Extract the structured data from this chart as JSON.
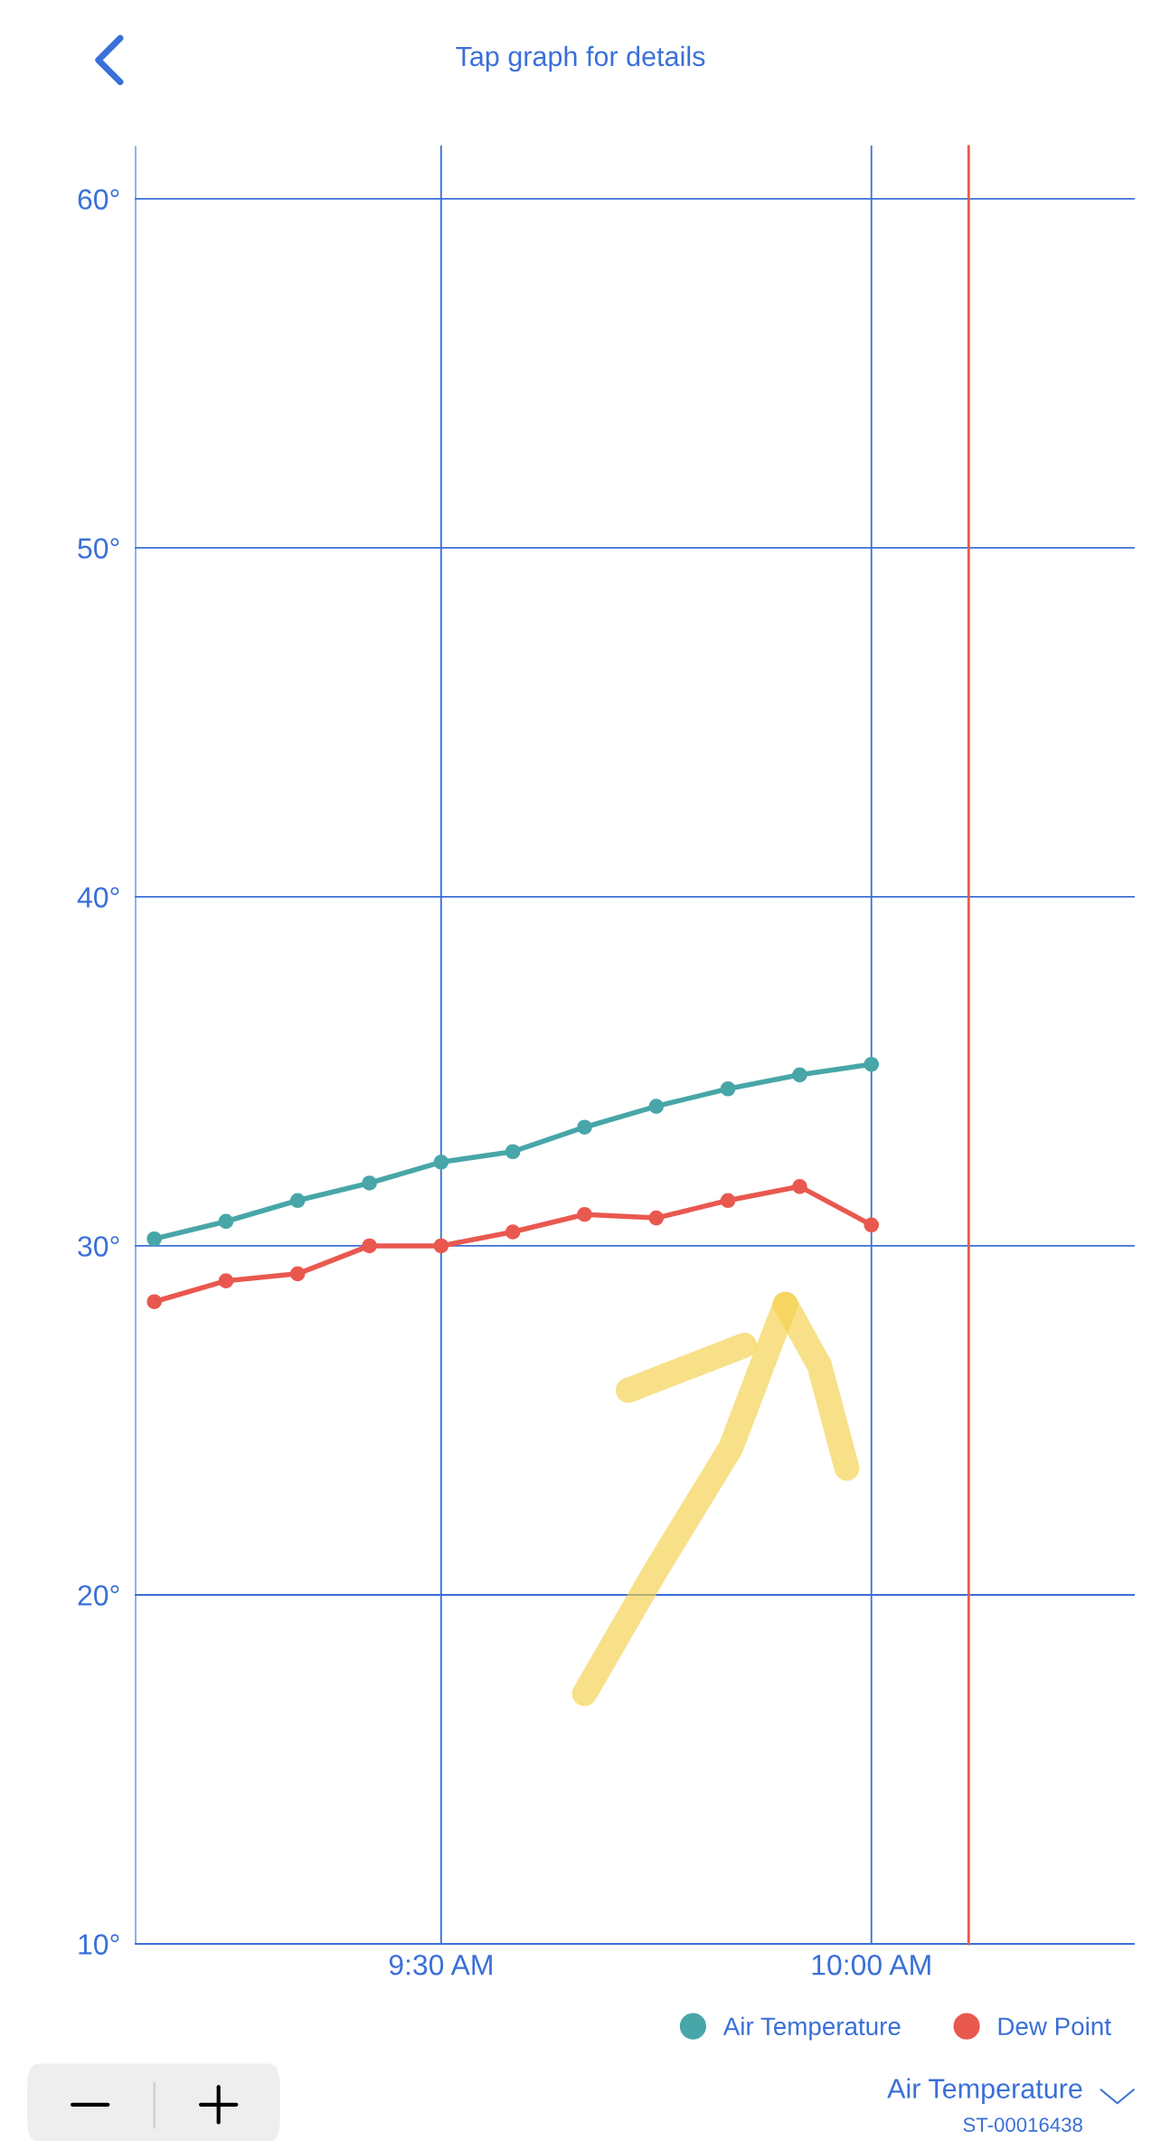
{
  "chart_data": {
    "type": "line",
    "title": "Tap graph for details",
    "x": [
      9.1667,
      9.25,
      9.3333,
      9.4167,
      9.5,
      9.5833,
      9.6667,
      9.75,
      9.8333,
      9.9167,
      10.0
    ],
    "series": [
      {
        "name": "Air Temperature",
        "color": "#48a6a8",
        "values": [
          30.2,
          30.7,
          31.3,
          31.8,
          32.4,
          32.7,
          33.4,
          34.0,
          34.5,
          34.9,
          35.2
        ]
      },
      {
        "name": "Dew Point",
        "color": "#e9584f",
        "values": [
          28.4,
          29.0,
          29.2,
          30.0,
          30.0,
          30.4,
          30.9,
          30.8,
          31.3,
          31.7,
          30.6
        ]
      }
    ],
    "xlim": [
      9.145,
      10.305
    ],
    "xticks": [
      {
        "value": 9.5,
        "label": "9:30 AM"
      },
      {
        "value": 10,
        "label": "10:00 AM"
      }
    ],
    "ylim": [
      10,
      61.5
    ],
    "yticks": [
      {
        "value": 10,
        "label": "10°"
      },
      {
        "value": 20,
        "label": "20°"
      },
      {
        "value": 30,
        "label": "30°"
      },
      {
        "value": 40,
        "label": "40°"
      },
      {
        "value": 50,
        "label": "50°"
      },
      {
        "value": 60,
        "label": "60°"
      }
    ],
    "ref_lines": [
      {
        "axis": "x",
        "value": 10.113,
        "label": null,
        "color": "#e9584f"
      }
    ],
    "grid": true,
    "legend": "bottom right",
    "marker": "circle",
    "line_style": "solid",
    "annotations": [
      "Air Temperature",
      "ST-00016438"
    ]
  }
}
